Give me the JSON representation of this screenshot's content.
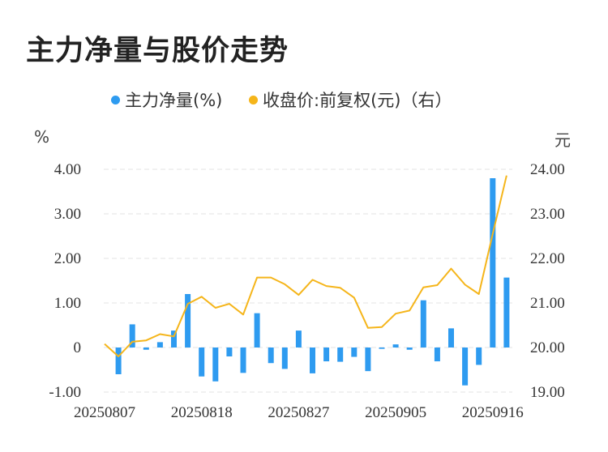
{
  "title": "主力净量与股价走势",
  "legend": {
    "net": "主力净量(%)",
    "price": "收盘价:前复权(元)（右）"
  },
  "units": {
    "left": "%",
    "right": "元"
  },
  "colors": {
    "bar": "#2e9bf0",
    "line": "#f5b51a",
    "grid": "#e3e3e3"
  },
  "chart_data": {
    "type": "bar+line",
    "title": "主力净量与股价走势",
    "x": [
      "20250807",
      "20250808",
      "20250811",
      "20250812",
      "20250813",
      "20250814",
      "20250815",
      "20250818",
      "20250819",
      "20250820",
      "20250821",
      "20250822",
      "20250825",
      "20250826",
      "20250827",
      "20250828",
      "20250829",
      "20250901",
      "20250902",
      "20250903",
      "20250904",
      "20250905",
      "20250908",
      "20250909",
      "20250910",
      "20250911",
      "20250912",
      "20250915",
      "20250916",
      "20250917"
    ],
    "x_tick_labels": [
      "20250807",
      "20250818",
      "20250827",
      "20250905",
      "20250916"
    ],
    "x_tick_indices": [
      0,
      7,
      14,
      21,
      28
    ],
    "series": [
      {
        "name": "主力净量(%)",
        "type": "bar",
        "axis": "left",
        "values": [
          0.0,
          -0.6,
          0.52,
          -0.05,
          0.12,
          0.38,
          1.2,
          -0.65,
          -0.76,
          -0.2,
          -0.57,
          0.77,
          -0.35,
          -0.48,
          0.38,
          -0.58,
          -0.31,
          -0.32,
          -0.21,
          -0.53,
          -0.03,
          0.07,
          -0.05,
          1.06,
          -0.31,
          0.43,
          -0.85,
          -0.39,
          3.8,
          1.57
        ]
      },
      {
        "name": "收盘价:前复权(元)（右）",
        "type": "line",
        "axis": "right",
        "values": [
          20.08,
          19.8,
          20.13,
          20.16,
          20.3,
          20.25,
          20.98,
          21.14,
          20.89,
          20.98,
          20.74,
          21.57,
          21.57,
          21.42,
          21.18,
          21.52,
          21.38,
          21.34,
          21.12,
          20.44,
          20.46,
          20.76,
          20.83,
          21.35,
          21.4,
          21.77,
          21.41,
          21.2,
          22.55,
          23.86
        ]
      }
    ],
    "y_left": {
      "ticks": [
        -1.0,
        0,
        1.0,
        2.0,
        3.0,
        4.0
      ],
      "labels": [
        "-1.00",
        "0",
        "1.00",
        "2.00",
        "3.00",
        "4.00"
      ],
      "range": [
        -1.0,
        4.0
      ]
    },
    "y_right": {
      "ticks": [
        19.0,
        20.0,
        21.0,
        22.0,
        23.0,
        24.0
      ],
      "labels": [
        "19.00",
        "20.00",
        "21.00",
        "22.00",
        "23.00",
        "24.00"
      ],
      "range": [
        19.0,
        24.0
      ]
    },
    "grid": "dashed horizontal",
    "legend_position": "top-center"
  }
}
